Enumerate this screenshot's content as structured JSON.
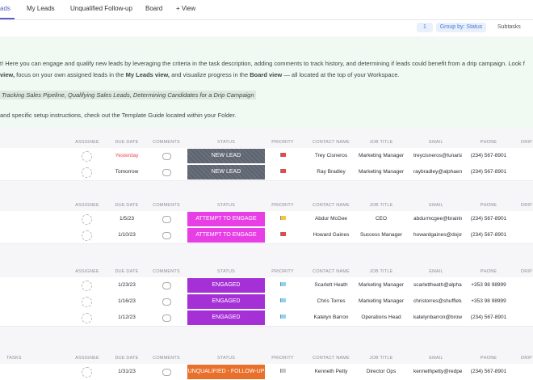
{
  "tabs": [
    "ads",
    "My Leads",
    "Unqualified Follow-up",
    "Board",
    "+ View"
  ],
  "toolbar": {
    "filter_count": "1",
    "group_by": "Group by: Status",
    "subtasks": "Subtasks"
  },
  "description": [
    [
      {
        "text": "t! Here you can engage and qualify new leads by leveraging the criteria in the task description, adding comments to track history, and determining if leads could benefit from a drip campaign. Look f",
        "bold": false
      }
    ],
    [
      {
        "text": "view,",
        "bold": true
      },
      {
        "text": " focus on your own assigned leads in the ",
        "bold": false
      },
      {
        "text": "My Leads view,",
        "bold": true
      },
      {
        "text": " and visualize progress in the ",
        "bold": false
      },
      {
        "text": "Board view",
        "bold": true
      },
      {
        "text": " — all located at the top of your Workspace.",
        "bold": false
      }
    ],
    [
      {
        "text": "Tracking Sales Pipeline,  Qualifying Sales Leads,  Determining Candidates for a Drip Campaign",
        "italic": true
      }
    ],
    [
      {
        "text": "and specific setup instructions, check out the Template Guide located within your Folder.",
        "bold": false
      }
    ]
  ],
  "columns": [
    "ASSIGNEE",
    "DUE DATE",
    "COMMENTS",
    "STATUS",
    "PRIORITY",
    "CONTACT NAME",
    "JOB TITLE",
    "EMAIL",
    "PHONE",
    "DRIP"
  ],
  "groups": [
    {
      "status": "NEW LEAD",
      "status_color": "#5d6470",
      "rows": [
        {
          "due": "Yesterday",
          "due_color": "#e5484d",
          "priority_color": "#e5484d",
          "contact": "Trey Cisneros",
          "job": "Marketing Manager",
          "email": "treycisneros@lunarla",
          "phone": "(234) 567-8901"
        },
        {
          "due": "Tomorrow",
          "priority_color": "#e5484d",
          "contact": "Ray Bradley",
          "job": "Marketing Manager",
          "email": "raybradley@alphaent",
          "phone": "(234) 567-8901"
        }
      ]
    },
    {
      "status": "ATTEMPT TO ENGAGE",
      "status_color": "#e83ee6",
      "rows": [
        {
          "due": "1/5/23",
          "priority_color": "#f5c542",
          "contact": "Abdur McGee",
          "job": "CEO",
          "email": "abdurmcgee@brainlo",
          "phone": "(234) 567-8901"
        },
        {
          "due": "1/10/23",
          "priority_color": "#e5484d",
          "contact": "Howard Gaines",
          "job": "Success Manager",
          "email": "howardgaines@dojot-",
          "phone": "(234) 567-8901"
        }
      ]
    },
    {
      "status": "ENGAGED",
      "status_color": "#a530d6",
      "rows": [
        {
          "due": "1/23/23",
          "priority_color": "#8fd3f4",
          "contact": "Scarlett Heath",
          "job": "Marketing Manager",
          "email": "scarlettheath@alphal",
          "phone": "+353 98 98999"
        },
        {
          "due": "1/16/23",
          "priority_color": "#8fd3f4",
          "contact": "Chris Torres",
          "job": "Marketing Manager",
          "email": "christorres@shuffletu",
          "phone": "+353 98 98999"
        },
        {
          "due": "1/12/23",
          "priority_color": "#8fd3f4",
          "contact": "Katelyn Barron",
          "job": "Operations Head",
          "email": "katelynbarron@browi",
          "phone": "(234) 567-8901"
        }
      ]
    },
    {
      "label": "TASKS",
      "status": "UNQUALIFIED - FOLLOW-UP",
      "status_color": "#e8702a",
      "rows": [
        {
          "due": "1/31/23",
          "priority_color": "#c8c8cc",
          "contact": "Kenneth Petty",
          "job": "Director Ops",
          "email": "kennethpetty@redpe",
          "phone": "(234) 567-8901"
        }
      ]
    }
  ]
}
